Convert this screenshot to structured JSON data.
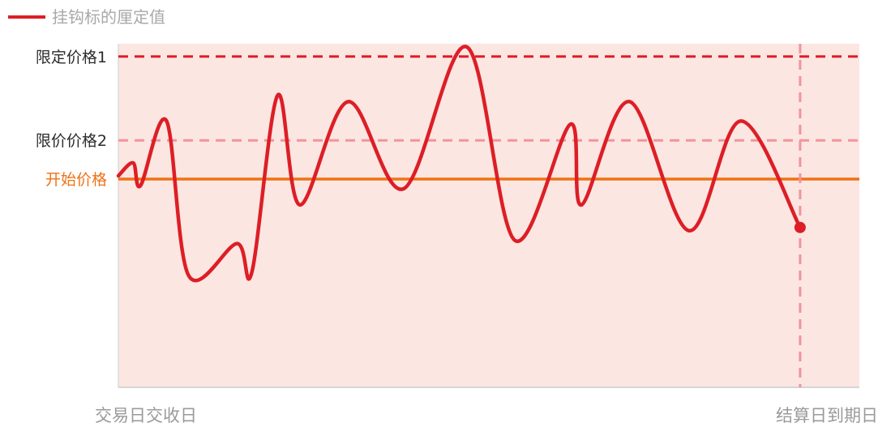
{
  "colors": {
    "plot_background": "#fbe6e2",
    "series_line": "#dd1e26",
    "reference_dark": "#dd1e26",
    "reference_light": "#f2949a",
    "start_line": "#f07114",
    "legend_text": "#a9a9a9",
    "axis_text": "#9a9a9a"
  },
  "chart_data": {
    "type": "line",
    "title": "",
    "legend": {
      "position": "top-left",
      "entries": [
        "挂钩标的厘定值"
      ]
    },
    "x_labels": {
      "start": "交易日交收日",
      "end": "结算日到期日"
    },
    "xlim": [
      0,
      100
    ],
    "ylim": [
      0,
      100
    ],
    "grid": false,
    "reference_lines": [
      {
        "label": "限定价格1",
        "value": 88,
        "style": "dashed",
        "color": "#dd1e26"
      },
      {
        "label": "限价价格2",
        "value": 62,
        "style": "dashed",
        "color": "#f2949a"
      },
      {
        "label": "开始价格",
        "value": 50,
        "style": "solid",
        "color": "#f07114"
      }
    ],
    "end_marker": {
      "x": 92,
      "label": ""
    },
    "series": [
      {
        "name": "挂钩标的厘定值",
        "color": "#dd1e26",
        "points": [
          [
            0,
            51
          ],
          [
            2,
            55
          ],
          [
            3,
            48
          ],
          [
            6.5,
            68
          ],
          [
            9.5,
            20
          ],
          [
            16,
            30
          ],
          [
            18,
            21
          ],
          [
            21.5,
            76
          ],
          [
            24.5,
            42
          ],
          [
            31,
            74
          ],
          [
            38.5,
            47
          ],
          [
            47,
            91
          ],
          [
            53.5,
            31
          ],
          [
            61,
            67
          ],
          [
            62.5,
            42
          ],
          [
            69,
            74
          ],
          [
            77,
            34
          ],
          [
            84,
            68
          ],
          [
            92,
            35
          ]
        ]
      }
    ]
  }
}
